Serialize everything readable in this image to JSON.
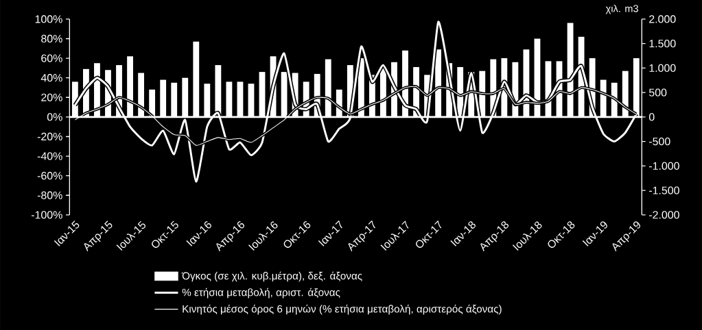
{
  "chart_data": {
    "type": "bar",
    "categories": [
      "Ιαν-15",
      null,
      null,
      "Απρ-15",
      null,
      null,
      "Ιουλ-15",
      null,
      null,
      "Οκτ-15",
      null,
      null,
      "Ιαν-16",
      null,
      null,
      "Απρ-16",
      null,
      null,
      "Ιουλ-16",
      null,
      null,
      "Οκτ-16",
      null,
      null,
      "Ιαν-17",
      null,
      null,
      "Απρ-17",
      null,
      null,
      "Ιουλ-17",
      null,
      null,
      "Οκτ-17",
      null,
      null,
      "Ιαν-18",
      null,
      null,
      "Απρ-18",
      null,
      null,
      "Ιουλ-18",
      null,
      null,
      "Οκτ-18",
      null,
      null,
      "Ιαν-19",
      null,
      null,
      "Απρ-19"
    ],
    "series": [
      {
        "name": "Όγκος (σε χιλ. κυβ.μέτρα), δεξ. άξονας",
        "type": "bar",
        "axis": "y2",
        "color": "#ffffff",
        "values": [
          720,
          980,
          1100,
          960,
          1060,
          1240,
          900,
          560,
          760,
          700,
          800,
          1540,
          680,
          1060,
          720,
          720,
          680,
          920,
          1240,
          920,
          900,
          720,
          880,
          1180,
          560,
          1060,
          1200,
          860,
          1000,
          1120,
          1360,
          1020,
          860,
          1380,
          1100,
          1020,
          920,
          940,
          1180,
          1200,
          1120,
          1380,
          1600,
          1140,
          1140,
          1920,
          1640,
          1200,
          760,
          700,
          940,
          1200
        ]
      },
      {
        "name": "% ετήσια μεταβολή, αριστ. άξονας",
        "type": "line",
        "color": "#ffffff",
        "values": [
          12,
          29,
          40,
          31,
          10,
          -10,
          -22,
          -29,
          -14,
          -38,
          -3,
          -66,
          -10,
          4,
          -33,
          -26,
          -39,
          -26,
          31,
          65,
          13,
          8,
          13,
          -25,
          -12,
          -1,
          72,
          36,
          53,
          31,
          12,
          8,
          -4,
          97,
          43,
          -14,
          45,
          -16,
          4,
          36,
          13,
          22,
          15,
          17,
          36,
          38,
          52,
          10,
          -17,
          -25,
          -16,
          3
        ]
      },
      {
        "name": "Κινητός μέσος όρος 6 μηνών (% ετήσια μεταβολή, αριστερός άξονας)",
        "type": "line",
        "color": "#ffffff",
        "values": [
          -3,
          4,
          8,
          13,
          20,
          16,
          10,
          1,
          -10,
          -18,
          -19,
          -29,
          -25,
          -21,
          -23,
          -22,
          -26,
          -19,
          -11,
          -3,
          8,
          15,
          20,
          19,
          10,
          3,
          8,
          13,
          17,
          24,
          30,
          31,
          22,
          30,
          29,
          22,
          26,
          24,
          24,
          29,
          13,
          15,
          14,
          16,
          26,
          24,
          30,
          28,
          24,
          19,
          10,
          3
        ]
      }
    ],
    "ylim": [
      -100,
      100
    ],
    "yticks": [
      {
        "value": -100,
        "label": "-100%"
      },
      {
        "value": -80,
        "label": "-80%"
      },
      {
        "value": -60,
        "label": "-60%"
      },
      {
        "value": -40,
        "label": "-40%"
      },
      {
        "value": -20,
        "label": "-20%"
      },
      {
        "value": 0,
        "label": "0%"
      },
      {
        "value": 20,
        "label": "20%"
      },
      {
        "value": 40,
        "label": "40%"
      },
      {
        "value": 60,
        "label": "60%"
      },
      {
        "value": 80,
        "label": "80%"
      },
      {
        "value": 100,
        "label": "100%"
      }
    ],
    "y2lim": [
      -2000,
      2000
    ],
    "y2ticks": [
      {
        "value": -2000,
        "label": "-2.000"
      },
      {
        "value": -1500,
        "label": "-1.500"
      },
      {
        "value": -1000,
        "label": "-1.000"
      },
      {
        "value": -500,
        "label": "-500"
      },
      0,
      500,
      {
        "value": 1000,
        "label": "1.000"
      },
      {
        "value": 1500,
        "label": "1.500"
      },
      {
        "value": 2000,
        "label": "2.000"
      }
    ],
    "y2label": "χιλ. m3",
    "legend": "bottom",
    "marker": "none",
    "line_style": "solid"
  }
}
